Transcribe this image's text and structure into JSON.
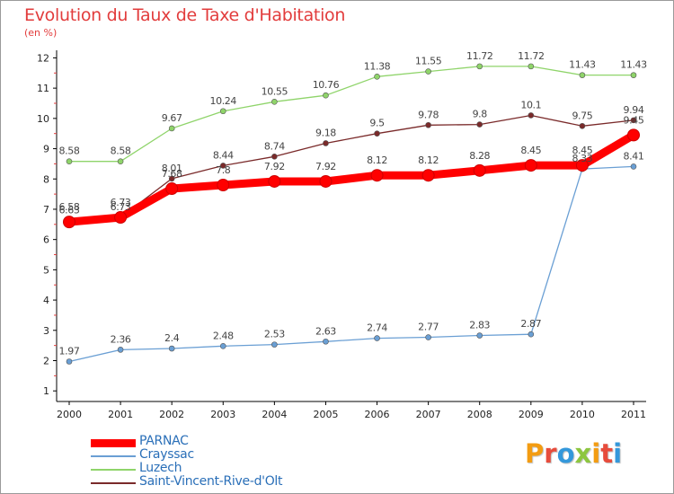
{
  "title": "Evolution du Taux de Taxe d'Habitation",
  "unit_label": "(en %)",
  "logo": {
    "letters": [
      {
        "ch": "P",
        "color": "#f39c12"
      },
      {
        "ch": "r",
        "color": "#e74c3c"
      },
      {
        "ch": "o",
        "color": "#3498db"
      },
      {
        "ch": "x",
        "color": "#8dc63f"
      },
      {
        "ch": "i",
        "color": "#f39c12"
      },
      {
        "ch": "t",
        "color": "#e74c3c"
      },
      {
        "ch": "i",
        "color": "#3498db"
      }
    ]
  },
  "chart_data": {
    "type": "line",
    "title": "Evolution du Taux de Taxe d'Habitation",
    "ylabel": "(en %)",
    "xlabel": "",
    "x": [
      "2000",
      "2001",
      "2002",
      "2003",
      "2004",
      "2005",
      "2006",
      "2007",
      "2008",
      "2009",
      "2010",
      "2011"
    ],
    "ylim": [
      1,
      12
    ],
    "yticks": [
      "1",
      "2",
      "3",
      "4",
      "5",
      "6",
      "7",
      "8",
      "9",
      "10",
      "11",
      "12"
    ],
    "grid": false,
    "legend_position": "bottom-left",
    "series": [
      {
        "name": "PARNAC",
        "color": "#ff0000",
        "role": "main",
        "values": [
          6.58,
          6.73,
          7.68,
          7.8,
          7.92,
          7.92,
          8.12,
          8.12,
          8.28,
          8.45,
          8.45,
          9.45
        ],
        "labels": [
          "6.58",
          "6.73",
          "7.68",
          "7.8",
          "7.92",
          "7.92",
          "8.12",
          "8.12",
          "8.28",
          "8.45",
          "8.45",
          "9.45"
        ]
      },
      {
        "name": "Crayssac",
        "color": "#6a9fd4",
        "role": "secondary",
        "values": [
          1.97,
          2.36,
          2.4,
          2.48,
          2.53,
          2.63,
          2.74,
          2.77,
          2.83,
          2.87,
          8.33,
          8.41
        ],
        "labels": [
          "1.97",
          "2.36",
          "2.4",
          "2.48",
          "2.53",
          "2.63",
          "2.74",
          "2.77",
          "2.83",
          "2.87",
          "8.33",
          "8.41"
        ]
      },
      {
        "name": "Luzech",
        "color": "#8fd46a",
        "role": "secondary",
        "values": [
          8.58,
          8.58,
          9.67,
          10.24,
          10.55,
          10.76,
          11.38,
          11.55,
          11.72,
          11.72,
          11.43,
          11.43
        ],
        "labels": [
          "8.58",
          "8.58",
          "9.67",
          "10.24",
          "10.55",
          "10.76",
          "11.38",
          "11.55",
          "11.72",
          "11.72",
          "11.43",
          "11.43"
        ]
      },
      {
        "name": "Saint-Vincent-Rive-d'Olt",
        "color": "#7a2a2a",
        "role": "secondary",
        "values": [
          6.63,
          6.73,
          8.01,
          8.44,
          8.74,
          9.18,
          9.5,
          9.78,
          9.8,
          10.1,
          9.75,
          9.94
        ],
        "labels": [
          "6.63",
          "6.73",
          "8.01",
          "8.44",
          "8.74",
          "9.18",
          "9.5",
          "9.78",
          "9.8",
          "10.1",
          "9.75",
          "9.94"
        ]
      }
    ]
  }
}
